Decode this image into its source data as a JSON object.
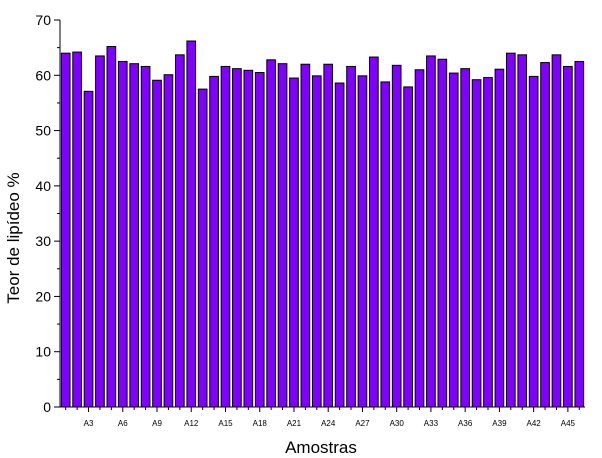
{
  "chart_data": {
    "type": "bar",
    "title": "",
    "xlabel": "Amostras",
    "ylabel": "Teor de lipídeo %",
    "ylim": [
      0,
      70
    ],
    "yticks": [
      0,
      10,
      20,
      30,
      40,
      50,
      60,
      70
    ],
    "categories": [
      "A1",
      "A2",
      "A3",
      "A4",
      "A5",
      "A6",
      "A7",
      "A8",
      "A9",
      "A10",
      "A11",
      "A12",
      "A13",
      "A14",
      "A15",
      "A16",
      "A17",
      "A18",
      "A19",
      "A20",
      "A21",
      "A22",
      "A23",
      "A24",
      "A25",
      "A26",
      "A27",
      "A28",
      "A29",
      "A30",
      "A31",
      "A32",
      "A33",
      "A34",
      "A35",
      "A36",
      "A37",
      "A38",
      "A39",
      "A40",
      "A41",
      "A42",
      "A43",
      "A44",
      "A45",
      "A46"
    ],
    "x_tick_labels": [
      "A3",
      "A6",
      "A9",
      "A12",
      "A15",
      "A18",
      "A21",
      "A24",
      "A27",
      "A30",
      "A33",
      "A36",
      "A39",
      "A42",
      "A45"
    ],
    "values": [
      64.0,
      64.2,
      57.1,
      63.5,
      65.2,
      62.5,
      62.1,
      61.6,
      59.1,
      60.1,
      63.7,
      66.2,
      57.5,
      59.8,
      61.6,
      61.2,
      60.9,
      60.5,
      62.8,
      62.1,
      59.5,
      62.0,
      59.9,
      62.0,
      58.6,
      61.6,
      59.9,
      63.3,
      58.8,
      61.8,
      57.9,
      61.0,
      63.5,
      62.9,
      60.4,
      61.2,
      59.2,
      59.6,
      61.1,
      64.0,
      63.7,
      59.8,
      62.3,
      63.7,
      61.6,
      62.5
    ],
    "bar_color": "#7f00ff",
    "grid": false,
    "legend": "none"
  }
}
